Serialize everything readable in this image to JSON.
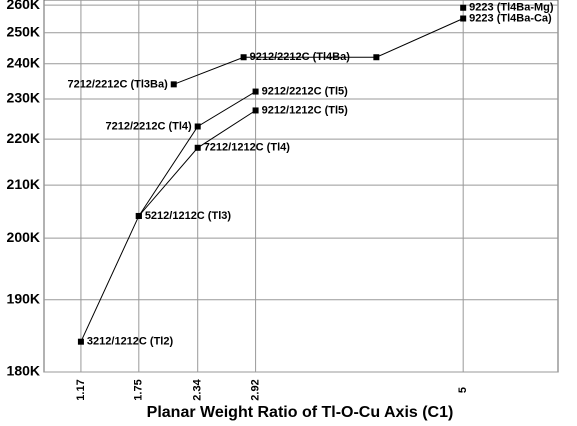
{
  "chart_data": {
    "type": "line",
    "x_label": "Planar Weight Ratio of Tl-O-Cu Axis (C1)",
    "yscale": "inverse-square",
    "xlim": [
      0.8,
      5.95
    ],
    "xticks": [
      1.17,
      1.75,
      2.34,
      2.92,
      5
    ],
    "ylim": [
      180000,
      262000
    ],
    "yticks": [
      {
        "value": 180000,
        "label": "180K"
      },
      {
        "value": 190000,
        "label": "190K"
      },
      {
        "value": 200000,
        "label": "200K"
      },
      {
        "value": 210000,
        "label": "210K"
      },
      {
        "value": 220000,
        "label": "220K"
      },
      {
        "value": 230000,
        "label": "230K"
      },
      {
        "value": 240000,
        "label": "240K"
      },
      {
        "value": 250000,
        "label": "250K"
      },
      {
        "value": 260000,
        "label": "260K"
      }
    ],
    "grid": true,
    "color": "#000000",
    "series": [
      {
        "x": [
          1.17,
          1.75,
          2.34,
          2.92
        ],
        "values": [
          184000,
          204000,
          218000,
          227000
        ],
        "labels": [
          "3212/1212C (Tl2)",
          "5212/1212C (Tl3)",
          "7212/1212C (Tl4)",
          "9212/1212C (Tl5)"
        ]
      },
      {
        "x": [
          1.75,
          2.34,
          2.92
        ],
        "values": [
          204000,
          223000,
          232000
        ],
        "labels": [
          null,
          "7212/2212C (Tl4)",
          "9212/2212C (Tl5)"
        ]
      },
      {
        "x": [
          2.1,
          2.8,
          4.13,
          5
        ],
        "values": [
          234000,
          242000,
          242000,
          255000
        ],
        "labels": [
          "7212/2212C (Tl3Ba)",
          "9212/2212C (Tl4Ba)",
          null,
          "9223 (Tl4Ba-Ca)"
        ]
      },
      {
        "x": [
          5
        ],
        "values": [
          259000
        ],
        "labels": [
          "9223 (Tl4Ba-Mg)"
        ]
      }
    ]
  }
}
